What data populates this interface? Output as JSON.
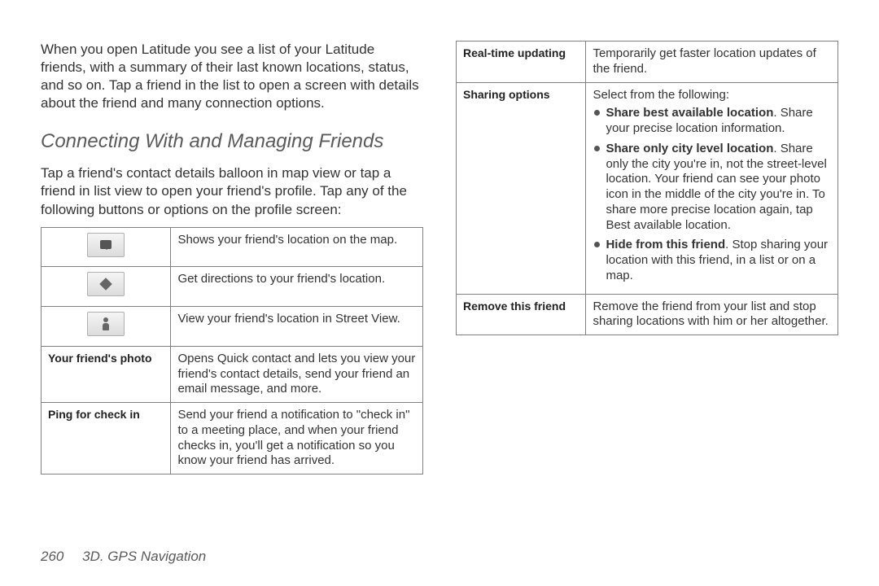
{
  "intro_text": "When you open Latitude you see a list of your Latitude friends, with a summary of their last known locations, status, and so on. Tap a friend in the list to open a screen with details about the friend and many connection options.",
  "section_heading": "Connecting With and Managing Friends",
  "sub_text": "Tap a friend's contact details balloon in map view or tap a friend in list view to open your friend's profile. Tap any of the following buttons or options on the profile screen:",
  "table1": {
    "rows": [
      {
        "icon": "speech",
        "desc": "Shows your friend's location on the map."
      },
      {
        "icon": "diamond",
        "desc": "Get directions to your friend's location."
      },
      {
        "icon": "person",
        "desc": "View your friend's location in Street View."
      },
      {
        "label": "Your friend's photo",
        "desc": "Opens Quick contact and lets you view your friend's contact details, send your friend an email message, and more."
      },
      {
        "label": "Ping for check in",
        "desc": "Send your friend a notification to \"check in\" to a meeting place, and when your friend checks in, you'll get a notification so you know your friend has arrived."
      }
    ]
  },
  "table2": {
    "rows": [
      {
        "label": "Real-time updating",
        "desc": "Temporarily get faster location updates of the friend."
      },
      {
        "label": "Sharing options",
        "intro": "Select from the following:",
        "bullets": [
          {
            "lead": "Share best available location",
            "rest": ". Share your precise location information."
          },
          {
            "lead": "Share only city level location",
            "rest": ". Share only the city you're in, not the street-level location. Your friend can see your photo icon in the middle of the city you're in. To share more precise location again, tap Best available location."
          },
          {
            "lead": "Hide from this friend",
            "rest": ". Stop sharing your location with this friend, in a list or on a map."
          }
        ]
      },
      {
        "label": "Remove this friend",
        "desc": "Remove the friend from your list and stop sharing locations with him or her altogether."
      }
    ]
  },
  "footer": {
    "page_num": "260",
    "section": "3D. GPS Navigation"
  }
}
